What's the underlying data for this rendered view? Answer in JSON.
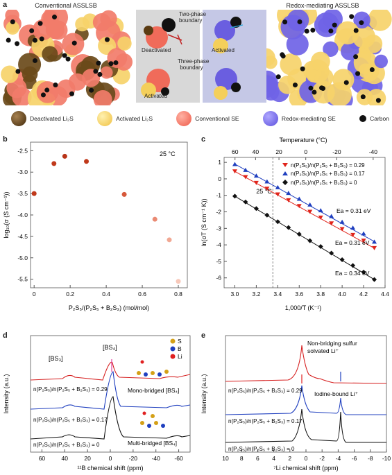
{
  "panel_a": {
    "label": "a",
    "left_title": "Conventional ASSLSB",
    "right_title": "Redox-mediating ASSLSB",
    "top_left_state": "Deactivated",
    "top_right_state": "Activated",
    "bottom_left_state": "Activated",
    "boundary_two": "Two-phase\nboundary",
    "boundary_three": "Three-phase\nboundary",
    "legend": [
      {
        "label": "Deactivated Li₂S",
        "color": "#5a3b12"
      },
      {
        "label": "Activated Li₂S",
        "color": "#f4cf5a"
      },
      {
        "label": "Conventional SE",
        "color": "#f06b5a"
      },
      {
        "label": "Redox-mediating SE",
        "color": "#6a5ee0"
      },
      {
        "label": "Carbon",
        "color": "#111111"
      }
    ]
  },
  "panel_b": {
    "label": "b",
    "annotation": "25 °C",
    "xlabel": "P₂S₅/(P₂S₅ + B₂S₃) (mol/mol)",
    "ylabel": "log₁₀(σ (S cm⁻¹))"
  },
  "panel_c": {
    "label": "c",
    "top_label": "Temperature (°C)",
    "xlabel": "1,000/T (K⁻¹)",
    "ylabel": "ln(σT (S cm⁻¹ K))",
    "vline_label": "25 °C",
    "ea_labels": [
      "Ea = 0.31 eV",
      "Ea = 0.31 eV",
      "Ea = 0.34 eV"
    ]
  },
  "panel_d": {
    "label": "d",
    "xlabel": "¹¹B chemical shift (ppm)",
    "ylabel": "Intensity (a.u.)",
    "bs3": "[BS₃]",
    "bs4": "[BS₄]",
    "mono": "Mono-bridged [BS₄]",
    "multi": "Multi-bridged [BS₄]",
    "legend": [
      {
        "label": "S",
        "color": "#d4a017"
      },
      {
        "label": "B",
        "color": "#1f3fbf"
      },
      {
        "label": "Li",
        "color": "#e02020"
      }
    ]
  },
  "panel_e": {
    "label": "e",
    "xlabel": "⁷Li chemical shift (ppm)",
    "ylabel": "Intensity (a.u.)",
    "nonbridging": "Non-bridging sulfur\nsolvated Li⁺",
    "iodine": "Iodine-bound Li⁺"
  },
  "series_labels": {
    "s029": "n(P₂S₅)/n(P₂S₅ + B₂S₃) = 0.29",
    "s017": "n(P₂S₅)/n(P₂S₅ + B₂S₃) = 0.17",
    "s0": "n(P₂S₅)/n(P₂S₅ + B₂S₃) = 0"
  },
  "chart_data": [
    {
      "type": "scatter",
      "panel": "b",
      "x": [
        0,
        0.11,
        0.17,
        0.29,
        0.5,
        0.67,
        0.75,
        0.8
      ],
      "y": [
        -3.5,
        -2.8,
        -2.63,
        -2.75,
        -3.52,
        -4.1,
        -4.58,
        -5.55
      ],
      "xlim": [
        -0.02,
        0.85
      ],
      "ylim": [
        -5.7,
        -2.3
      ],
      "xticks": [
        "0",
        "0.2",
        "0.4",
        "0.6",
        "0.8"
      ],
      "yticks": [
        "-2.5",
        "-3.0",
        "-3.5",
        "-4.0",
        "-4.5",
        "-5.0",
        "-5.5"
      ],
      "colors": [
        "#c0391b",
        "#c0391b",
        "#b83318",
        "#c0391b",
        "#d6583a",
        "#ea8a73",
        "#f1a893",
        "#f7c8b9"
      ]
    },
    {
      "type": "line",
      "panel": "c",
      "xlim": [
        2.9,
        4.4
      ],
      "ylim": [
        -6.6,
        1.3
      ],
      "xticks": [
        "3.0",
        "3.2",
        "3.4",
        "3.6",
        "3.8",
        "4.0",
        "4.2",
        "4.4"
      ],
      "yticks": [
        "1",
        "0",
        "-1",
        "-2",
        "-3",
        "-4",
        "-5",
        "-6"
      ],
      "top_ticks": [
        "60",
        "40",
        "20",
        "0",
        "-20",
        "-40"
      ],
      "vline_x": 3.354,
      "series": [
        {
          "name": "n(P₂S₅)/n(P₂S₅ + B₂S₃) = 0.29",
          "color": "#e0241b",
          "marker": "tri-down",
          "x": [
            3.0,
            3.1,
            3.2,
            3.3,
            3.4,
            3.5,
            3.6,
            3.7,
            3.8,
            3.9,
            4.0,
            4.1,
            4.2,
            4.3
          ],
          "y": [
            0.45,
            0.1,
            -0.25,
            -0.6,
            -0.95,
            -1.3,
            -1.65,
            -2.0,
            -2.35,
            -2.7,
            -3.05,
            -3.4,
            -3.75,
            -4.2
          ]
        },
        {
          "name": "n(P₂S₅)/n(P₂S₅ + B₂S₃) = 0.17",
          "color": "#1f3fbf",
          "marker": "tri-up",
          "x": [
            3.0,
            3.1,
            3.2,
            3.3,
            3.4,
            3.5,
            3.6,
            3.7,
            3.8,
            3.9,
            4.0,
            4.1,
            4.2,
            4.3
          ],
          "y": [
            0.9,
            0.55,
            0.2,
            -0.15,
            -0.5,
            -0.85,
            -1.2,
            -1.55,
            -1.9,
            -2.25,
            -2.6,
            -2.95,
            -3.3,
            -3.8
          ]
        },
        {
          "name": "n(P₂S₅)/n(P₂S₅ + B₂S₃) = 0",
          "color": "#111111",
          "marker": "diamond",
          "x": [
            3.0,
            3.1,
            3.2,
            3.3,
            3.4,
            3.5,
            3.6,
            3.7,
            3.8,
            3.9,
            4.0,
            4.1,
            4.2,
            4.3
          ],
          "y": [
            -1.05,
            -1.4,
            -1.8,
            -2.2,
            -2.6,
            -2.95,
            -3.35,
            -3.75,
            -4.1,
            -4.5,
            -4.9,
            -5.25,
            -5.65,
            -6.1
          ]
        }
      ]
    },
    {
      "type": "line",
      "panel": "d",
      "xlim": [
        70,
        -70
      ],
      "xticks": [
        "60",
        "40",
        "20",
        "0",
        "-20",
        "-40",
        "-60"
      ]
    },
    {
      "type": "line",
      "panel": "e",
      "xlim": [
        10,
        -10
      ],
      "xticks": [
        "10",
        "8",
        "6",
        "4",
        "2",
        "0",
        "-2",
        "-4",
        "-6",
        "-8",
        "-10"
      ]
    }
  ]
}
